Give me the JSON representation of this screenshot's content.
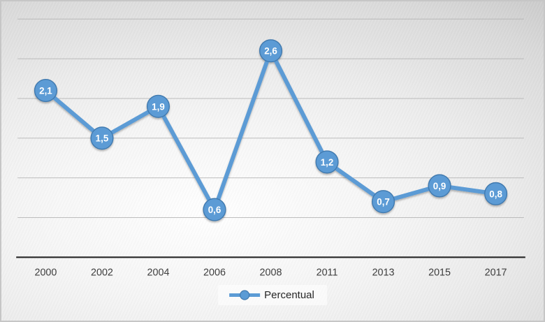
{
  "chart_data": {
    "type": "line",
    "title": "",
    "xlabel": "",
    "ylabel": "",
    "categories": [
      "2000",
      "2002",
      "2004",
      "2006",
      "2008",
      "2011",
      "2013",
      "2015",
      "2017"
    ],
    "series": [
      {
        "name": "Percentual",
        "values": [
          2.1,
          1.5,
          1.9,
          0.6,
          2.6,
          1.2,
          0.7,
          0.9,
          0.8
        ],
        "labels": [
          "2,1",
          "1,5",
          "1,9",
          "0,6",
          "2,6",
          "1,2",
          "0,7",
          "0,9",
          "0,8"
        ]
      }
    ],
    "decimal_separator": ",",
    "ylim": [
      0,
      3
    ],
    "y_grid_step": 0.5,
    "grid": true,
    "y_tick_labels_visible": false,
    "legend_position": "bottom",
    "colors": {
      "line": "#5B9BD5",
      "marker_fill": "#5B9BD5",
      "marker_border": "#4179AE",
      "label_text": "#FFFFFF",
      "gridline": "#B3B3B3",
      "axis_line": "#262626",
      "axis_text": "#3F3F3F"
    }
  },
  "legend": {
    "label": "Percentual"
  }
}
